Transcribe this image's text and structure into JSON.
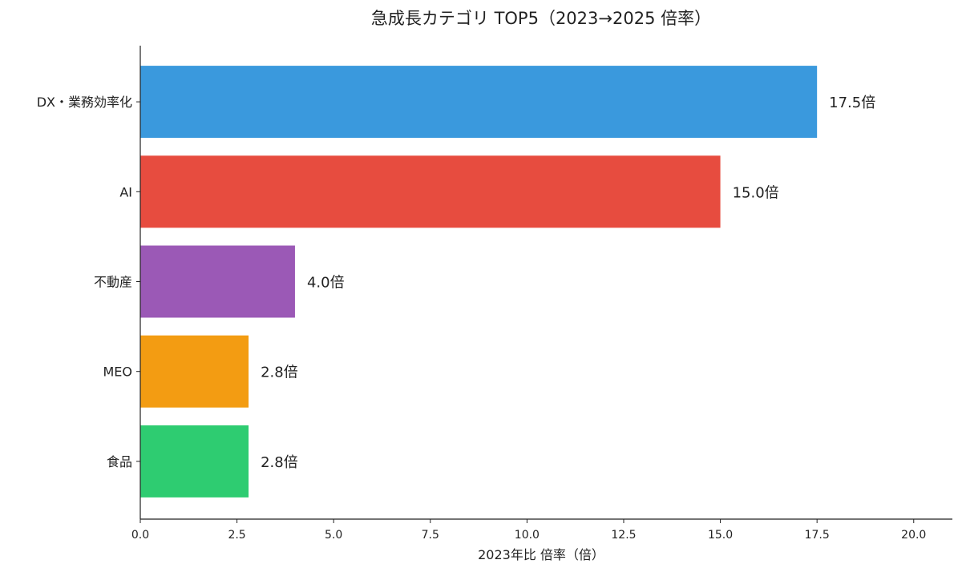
{
  "chart_data": {
    "type": "bar",
    "orientation": "horizontal",
    "title": "急成長カテゴリ TOP5（2023→2025 倍率）",
    "xlabel": "2023年比 倍率（倍）",
    "ylabel": "",
    "xlim": [
      0,
      21
    ],
    "xticks": [
      0.0,
      2.5,
      5.0,
      7.5,
      10.0,
      12.5,
      15.0,
      17.5,
      20.0
    ],
    "xtick_labels": [
      "0.0",
      "2.5",
      "5.0",
      "7.5",
      "10.0",
      "12.5",
      "15.0",
      "17.5",
      "20.0"
    ],
    "categories": [
      "DX・業務効率化",
      "AI",
      "不動産",
      "MEO",
      "食品"
    ],
    "values": [
      17.5,
      15.0,
      4.0,
      2.8,
      2.8
    ],
    "value_labels": [
      "17.5倍",
      "15.0倍",
      "4.0倍",
      "2.8倍",
      "2.8倍"
    ],
    "colors": [
      "#3a99dd",
      "#e74c3f",
      "#9b59b6",
      "#f39c12",
      "#2ecc71"
    ],
    "grid": false,
    "legend": "none"
  }
}
